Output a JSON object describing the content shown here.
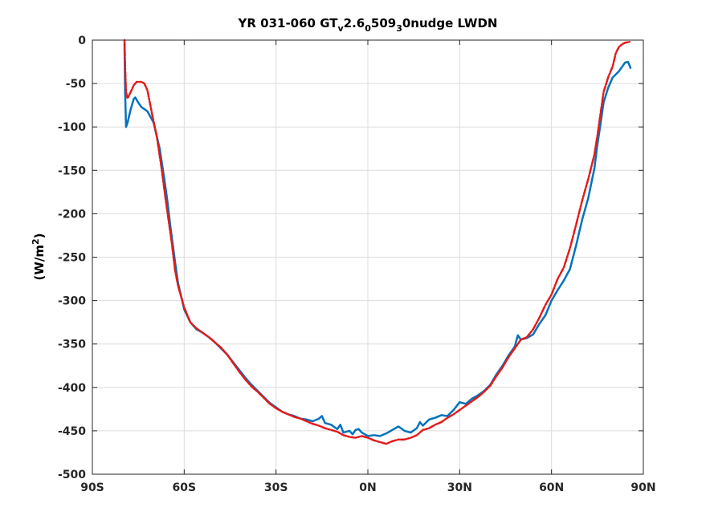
{
  "chart_data": {
    "type": "line",
    "title": {
      "prefix": "YR 031-060 GT",
      "sub1": "v",
      "mid1": "2.6",
      "sub2": "0",
      "mid2": "509",
      "sub3": "3",
      "suffix": "0nudge LWDN"
    },
    "xlabel": "",
    "ylabel": {
      "main": "(W/m",
      "sup": "2",
      "end": ")"
    },
    "xlim": [
      -90,
      90
    ],
    "ylim": [
      -500,
      0
    ],
    "xticks": [
      -90,
      -60,
      -30,
      0,
      30,
      60,
      90
    ],
    "xtick_labels": [
      "90S",
      "60S",
      "30S",
      "0N",
      "30N",
      "60N",
      "90N"
    ],
    "yticks": [
      0,
      -50,
      -100,
      -150,
      -200,
      -250,
      -300,
      -350,
      -400,
      -450,
      -500
    ],
    "ytick_labels": [
      "0",
      "-50",
      "-100",
      "-150",
      "-200",
      "-250",
      "-300",
      "-350",
      "-400",
      "-450",
      "-500"
    ],
    "grid": true,
    "series": [
      {
        "color": "#0072bd",
        "style": "solid",
        "points": [
          [
            -79.5,
            -5
          ],
          [
            -79.3,
            -60
          ],
          [
            -79.0,
            -100
          ],
          [
            -78.5,
            -95
          ],
          [
            -77.5,
            -80
          ],
          [
            -76.5,
            -68
          ],
          [
            -76.0,
            -66
          ],
          [
            -75.0,
            -72
          ],
          [
            -74.0,
            -77
          ],
          [
            -72.0,
            -82
          ],
          [
            -70.0,
            -95
          ],
          [
            -68.0,
            -125
          ],
          [
            -66.5,
            -160
          ],
          [
            -65.5,
            -185
          ],
          [
            -64.5,
            -215
          ],
          [
            -63.0,
            -255
          ],
          [
            -62.0,
            -280
          ],
          [
            -60.0,
            -310
          ],
          [
            -58.0,
            -325
          ],
          [
            -56.0,
            -333
          ],
          [
            -54.0,
            -337
          ],
          [
            -52.0,
            -342
          ],
          [
            -50.0,
            -348
          ],
          [
            -48.0,
            -355
          ],
          [
            -46.0,
            -362
          ],
          [
            -44.0,
            -371
          ],
          [
            -42.0,
            -380
          ],
          [
            -40.0,
            -389
          ],
          [
            -38.0,
            -397
          ],
          [
            -36.0,
            -404
          ],
          [
            -34.0,
            -411
          ],
          [
            -32.0,
            -418
          ],
          [
            -30.0,
            -423
          ],
          [
            -28.0,
            -428
          ],
          [
            -26.0,
            -431
          ],
          [
            -24.0,
            -433
          ],
          [
            -22.0,
            -436
          ],
          [
            -20.0,
            -437
          ],
          [
            -18.0,
            -439
          ],
          [
            -16.0,
            -436
          ],
          [
            -15.0,
            -433
          ],
          [
            -14.0,
            -441
          ],
          [
            -12.0,
            -443
          ],
          [
            -10.0,
            -448
          ],
          [
            -9.0,
            -443
          ],
          [
            -8.0,
            -452
          ],
          [
            -6.0,
            -450
          ],
          [
            -5.0,
            -454
          ],
          [
            -4.0,
            -449
          ],
          [
            -3.0,
            -448
          ],
          [
            -2.0,
            -452
          ],
          [
            0.0,
            -456
          ],
          [
            2.0,
            -455
          ],
          [
            4.0,
            -456
          ],
          [
            6.0,
            -453
          ],
          [
            8.0,
            -449
          ],
          [
            10.0,
            -445
          ],
          [
            12.0,
            -450
          ],
          [
            14.0,
            -452
          ],
          [
            16.0,
            -447
          ],
          [
            17.0,
            -440
          ],
          [
            18.0,
            -444
          ],
          [
            20.0,
            -437
          ],
          [
            22.0,
            -435
          ],
          [
            24.0,
            -432
          ],
          [
            26.0,
            -433
          ],
          [
            28.0,
            -426
          ],
          [
            30.0,
            -417
          ],
          [
            32.0,
            -419
          ],
          [
            34.0,
            -413
          ],
          [
            36.0,
            -409
          ],
          [
            38.0,
            -404
          ],
          [
            40.0,
            -397
          ],
          [
            42.0,
            -385
          ],
          [
            44.0,
            -375
          ],
          [
            46.0,
            -363
          ],
          [
            48.0,
            -353
          ],
          [
            49.0,
            -340
          ],
          [
            50.0,
            -345
          ],
          [
            52.0,
            -343
          ],
          [
            54.0,
            -339
          ],
          [
            56.0,
            -327
          ],
          [
            58.0,
            -317
          ],
          [
            60.0,
            -300
          ],
          [
            62.0,
            -288
          ],
          [
            64.0,
            -277
          ],
          [
            66.0,
            -264
          ],
          [
            68.0,
            -237
          ],
          [
            70.0,
            -207
          ],
          [
            72.0,
            -182
          ],
          [
            74.0,
            -148
          ],
          [
            75.0,
            -120
          ],
          [
            76.0,
            -97
          ],
          [
            77.0,
            -72
          ],
          [
            78.5,
            -55
          ],
          [
            80.0,
            -43
          ],
          [
            82.0,
            -36
          ],
          [
            83.0,
            -31
          ],
          [
            84.0,
            -26
          ],
          [
            85.0,
            -25
          ],
          [
            85.8,
            -32
          ]
        ]
      },
      {
        "color": "#e21b1b",
        "style": "dash-dot",
        "points": [
          [
            -79.5,
            0
          ],
          [
            -79.3,
            -30
          ],
          [
            -79.0,
            -60
          ],
          [
            -78.5,
            -67
          ],
          [
            -77.5,
            -60
          ],
          [
            -76.5,
            -52
          ],
          [
            -75.5,
            -48
          ],
          [
            -74.0,
            -48
          ],
          [
            -73.0,
            -50
          ],
          [
            -72.0,
            -58
          ],
          [
            -70.5,
            -85
          ],
          [
            -69.0,
            -110
          ],
          [
            -67.5,
            -145
          ],
          [
            -66.0,
            -185
          ],
          [
            -65.0,
            -210
          ],
          [
            -64.0,
            -235
          ],
          [
            -63.0,
            -265
          ],
          [
            -62.0,
            -283
          ],
          [
            -60.0,
            -308
          ],
          [
            -58.0,
            -325
          ],
          [
            -56.0,
            -332
          ],
          [
            -54.0,
            -337
          ],
          [
            -52.0,
            -342
          ],
          [
            -50.0,
            -348
          ],
          [
            -48.0,
            -354
          ],
          [
            -46.0,
            -362
          ],
          [
            -44.0,
            -372
          ],
          [
            -42.0,
            -382
          ],
          [
            -40.0,
            -391
          ],
          [
            -38.0,
            -399
          ],
          [
            -36.0,
            -405
          ],
          [
            -34.0,
            -412
          ],
          [
            -32.0,
            -419
          ],
          [
            -30.0,
            -424
          ],
          [
            -28.0,
            -428
          ],
          [
            -26.0,
            -431
          ],
          [
            -24.0,
            -434
          ],
          [
            -22.0,
            -436
          ],
          [
            -20.0,
            -439
          ],
          [
            -18.0,
            -442
          ],
          [
            -16.0,
            -444
          ],
          [
            -14.0,
            -447
          ],
          [
            -12.0,
            -449
          ],
          [
            -10.0,
            -451
          ],
          [
            -8.0,
            -455
          ],
          [
            -6.0,
            -457
          ],
          [
            -4.0,
            -458
          ],
          [
            -2.0,
            -456
          ],
          [
            0.0,
            -458
          ],
          [
            2.0,
            -461
          ],
          [
            4.0,
            -463
          ],
          [
            6.0,
            -465
          ],
          [
            8.0,
            -462
          ],
          [
            10.0,
            -460
          ],
          [
            12.0,
            -460
          ],
          [
            14.0,
            -458
          ],
          [
            16.0,
            -455
          ],
          [
            18.0,
            -449
          ],
          [
            20.0,
            -447
          ],
          [
            22.0,
            -443
          ],
          [
            24.0,
            -440
          ],
          [
            26.0,
            -435
          ],
          [
            28.0,
            -431
          ],
          [
            30.0,
            -426
          ],
          [
            32.0,
            -421
          ],
          [
            34.0,
            -416
          ],
          [
            36.0,
            -411
          ],
          [
            38.0,
            -405
          ],
          [
            40.0,
            -398
          ],
          [
            42.0,
            -387
          ],
          [
            44.0,
            -377
          ],
          [
            46.0,
            -365
          ],
          [
            48.0,
            -355
          ],
          [
            50.0,
            -345
          ],
          [
            52.0,
            -342
          ],
          [
            54.0,
            -333
          ],
          [
            56.0,
            -320
          ],
          [
            58.0,
            -305
          ],
          [
            60.0,
            -293
          ],
          [
            62.0,
            -275
          ],
          [
            64.0,
            -262
          ],
          [
            66.0,
            -240
          ],
          [
            68.0,
            -213
          ],
          [
            70.0,
            -185
          ],
          [
            72.0,
            -160
          ],
          [
            74.0,
            -132
          ],
          [
            75.0,
            -110
          ],
          [
            76.0,
            -85
          ],
          [
            77.0,
            -60
          ],
          [
            78.5,
            -43
          ],
          [
            80.0,
            -30
          ],
          [
            81.0,
            -15
          ],
          [
            82.0,
            -8
          ],
          [
            83.0,
            -5
          ],
          [
            84.0,
            -3
          ],
          [
            85.5,
            -2
          ]
        ]
      }
    ]
  }
}
